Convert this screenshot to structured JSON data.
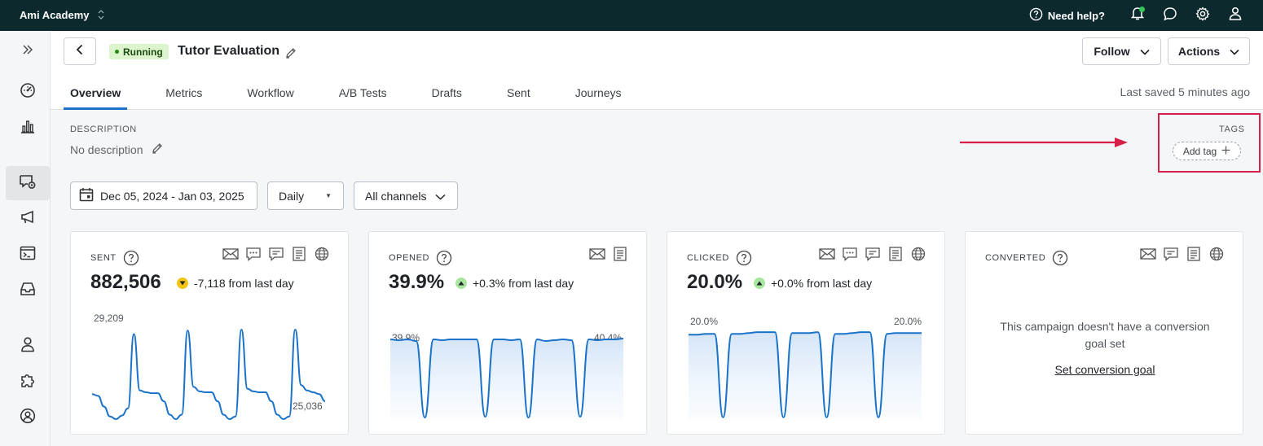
{
  "topbar": {
    "workspace": "Ami Academy",
    "help_label": "Need help?",
    "icons": [
      "help-circle-icon",
      "bell-icon",
      "chat-icon",
      "gear-icon",
      "user-icon"
    ]
  },
  "rail": {
    "icons": [
      "expand-icon",
      "dashboard-icon",
      "bar-chart-icon",
      "campaign-icon",
      "megaphone-icon",
      "terminal-icon",
      "inbox-icon",
      "person-icon",
      "puzzle-icon",
      "account-icon"
    ]
  },
  "header": {
    "status": "Running",
    "title": "Tutor Evaluation",
    "follow_label": "Follow",
    "actions_label": "Actions",
    "tabs": [
      {
        "label": "Overview"
      },
      {
        "label": "Metrics"
      },
      {
        "label": "Workflow"
      },
      {
        "label": "A/B Tests"
      },
      {
        "label": "Drafts"
      },
      {
        "label": "Sent"
      },
      {
        "label": "Journeys"
      }
    ],
    "active_tab": "Overview",
    "last_saved": "Last saved 5 minutes ago"
  },
  "description": {
    "label": "DESCRIPTION",
    "value": "No description"
  },
  "tags": {
    "label": "TAGS",
    "add_label": "Add tag"
  },
  "filters": {
    "date_range": "Dec 05, 2024 - Jan 03, 2025",
    "frequency": "Daily",
    "channels": "All channels"
  },
  "cards": {
    "sent": {
      "label": "SENT",
      "value": "882,506",
      "delta": "-7,118 from last day",
      "trend": "down",
      "peak_label": "29,209",
      "end_label": "25,036",
      "series": [
        0.28,
        0.26,
        0.14,
        0.03,
        0.0,
        0.04,
        0.12,
        0.95,
        0.32,
        0.3,
        0.29,
        0.29,
        0.2,
        0.05,
        0.0,
        0.05,
        0.99,
        0.36,
        0.31,
        0.3,
        0.3,
        0.2,
        0.05,
        0.0,
        0.03,
        1.0,
        0.34,
        0.31,
        0.3,
        0.3,
        0.2,
        0.05,
        0.0,
        0.03,
        1.0,
        0.38,
        0.32,
        0.3,
        0.28,
        0.2
      ]
    },
    "opened": {
      "label": "OPENED",
      "value": "39.9%",
      "delta": "+0.3% from last day",
      "trend": "up",
      "start_label": "39.9%",
      "end_label": "40.4%",
      "series": [
        0.98,
        0.97,
        0.98,
        0.96,
        0.02,
        0.98,
        0.97,
        0.98,
        0.98,
        0.98,
        0.98,
        0.03,
        0.98,
        0.98,
        0.97,
        0.98,
        0.02,
        0.98,
        0.96,
        0.97,
        0.98,
        0.97,
        0.03,
        0.98,
        0.97,
        0.98,
        0.98,
        0.99
      ]
    },
    "clicked": {
      "label": "CLICKED",
      "value": "20.0%",
      "delta": "+0.0% from last day",
      "trend": "up",
      "start_label": "20.0%",
      "end_label": "20.0%",
      "series": [
        0.96,
        0.96,
        0.97,
        0.97,
        0.02,
        0.97,
        0.97,
        0.98,
        0.99,
        0.99,
        0.99,
        0.02,
        0.98,
        0.98,
        0.98,
        0.99,
        0.02,
        0.97,
        0.97,
        0.98,
        0.99,
        0.99,
        0.02,
        0.97,
        0.98,
        0.98,
        0.98,
        0.98
      ]
    },
    "converted": {
      "label": "CONVERTED",
      "message": "This campaign doesn't have a conversion goal set",
      "link": "Set conversion goal"
    }
  },
  "colors": {
    "topbar": "#0c2a2e",
    "accent": "#1a73c9",
    "highlight": "#d6204a",
    "running": "#dcf5cf"
  }
}
